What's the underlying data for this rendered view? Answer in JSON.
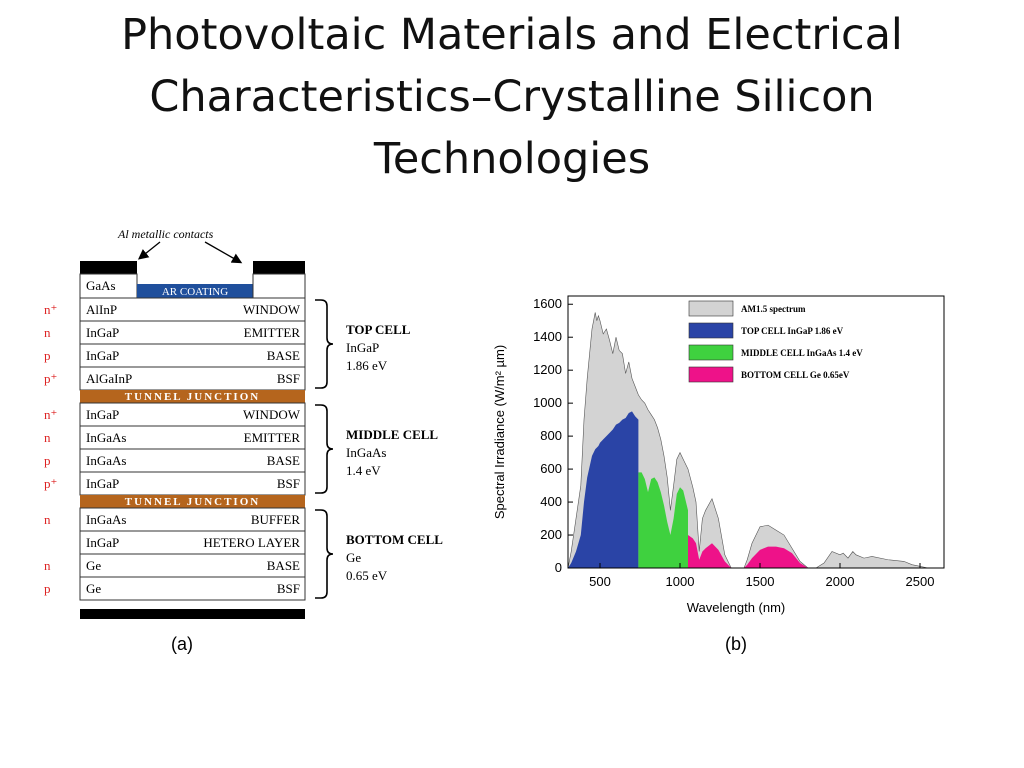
{
  "title_lines": [
    "Photovoltaic Materials and Electrical",
    "Characteristics–Crystalline Silicon",
    "Technologies"
  ],
  "stack": {
    "contacts_label": "Al metallic contacts",
    "cap_label": "GaAs",
    "ar_label": "AR COATING",
    "junction_label": "TUNNEL JUNCTION",
    "caption": "(a)",
    "colors": {
      "junction": "#b5651d",
      "ar": "#1f4f9c",
      "contact": "#000000"
    },
    "top_layers": [
      {
        "doping": "n⁺",
        "material": "AlInP",
        "role": "WINDOW"
      },
      {
        "doping": "n",
        "material": "InGaP",
        "role": "EMITTER"
      },
      {
        "doping": "p",
        "material": "InGaP",
        "role": "BASE"
      },
      {
        "doping": "p⁺",
        "material": "AlGaInP",
        "role": "BSF"
      }
    ],
    "middle_layers": [
      {
        "doping": "n⁺",
        "material": "InGaP",
        "role": "WINDOW"
      },
      {
        "doping": "n",
        "material": "InGaAs",
        "role": "EMITTER"
      },
      {
        "doping": "p",
        "material": "InGaAs",
        "role": "BASE"
      },
      {
        "doping": "p⁺",
        "material": "InGaP",
        "role": "BSF"
      }
    ],
    "bottom_layers": [
      {
        "doping": "n",
        "material": "InGaAs",
        "role": "BUFFER"
      },
      {
        "doping": "",
        "material": "InGaP",
        "role": "HETERO LAYER"
      },
      {
        "doping": "n",
        "material": "Ge",
        "role": "BASE"
      },
      {
        "doping": "p",
        "material": "Ge",
        "role": "BSF"
      }
    ],
    "cells": [
      {
        "name": "TOP CELL",
        "material": "InGaP",
        "energy": "1.86 eV"
      },
      {
        "name": "MIDDLE CELL",
        "material": "InGaAs",
        "energy": "1.4 eV"
      },
      {
        "name": "BOTTOM CELL",
        "material": "Ge",
        "energy": "0.65 eV"
      }
    ]
  },
  "chart_data": {
    "type": "area",
    "caption": "(b)",
    "xlabel": "Wavelength (nm)",
    "ylabel": "Spectral Irradiance (W/m² µm)",
    "xlim": [
      300,
      2650
    ],
    "ylim": [
      0,
      1650
    ],
    "xticks": [
      500,
      1000,
      1500,
      2000,
      2500
    ],
    "yticks": [
      0,
      200,
      400,
      600,
      800,
      1000,
      1200,
      1400,
      1600
    ],
    "legend": [
      {
        "label": "AM1.5 spectrum",
        "color": "#d3d3d3"
      },
      {
        "label": "TOP CELL InGaP 1.86 eV",
        "color": "#2a44a6"
      },
      {
        "label": "MIDDLE CELL InGaAs 1.4 eV",
        "color": "#3fd13f"
      },
      {
        "label": "BOTTOM CELL Ge 0.65eV",
        "color": "#ee1289"
      }
    ],
    "series": [
      {
        "name": "AM1.5 spectrum",
        "color": "#d3d3d3",
        "x": [
          300,
          320,
          350,
          380,
          400,
          420,
          450,
          470,
          480,
          490,
          500,
          520,
          540,
          560,
          580,
          600,
          620,
          640,
          660,
          680,
          700,
          720,
          740,
          760,
          780,
          800,
          820,
          840,
          860,
          880,
          900,
          920,
          940,
          960,
          980,
          1000,
          1020,
          1050,
          1080,
          1100,
          1120,
          1140,
          1160,
          1200,
          1240,
          1280,
          1320,
          1350,
          1380,
          1400,
          1420,
          1450,
          1500,
          1550,
          1600,
          1650,
          1700,
          1750,
          1800,
          1850,
          1900,
          1950,
          2000,
          2020,
          2050,
          2080,
          2100,
          2150,
          2200,
          2300,
          2400,
          2450,
          2500,
          2550
        ],
        "y": [
          0,
          100,
          300,
          500,
          900,
          1150,
          1450,
          1550,
          1500,
          1530,
          1500,
          1420,
          1450,
          1380,
          1300,
          1400,
          1320,
          1300,
          1180,
          1250,
          1150,
          1100,
          1050,
          1020,
          1000,
          960,
          930,
          900,
          850,
          780,
          680,
          550,
          350,
          500,
          660,
          700,
          660,
          600,
          490,
          400,
          100,
          300,
          350,
          420,
          300,
          80,
          0,
          0,
          0,
          0,
          50,
          150,
          250,
          260,
          230,
          200,
          120,
          40,
          0,
          0,
          30,
          100,
          80,
          90,
          60,
          100,
          80,
          60,
          70,
          50,
          40,
          20,
          10,
          0
        ]
      },
      {
        "name": "TOP CELL InGaP 1.86 eV",
        "color": "#2a44a6",
        "x": [
          300,
          320,
          350,
          380,
          400,
          420,
          450,
          470,
          480,
          490,
          500,
          520,
          540,
          560,
          580,
          600,
          620,
          640,
          660,
          680,
          700,
          720,
          740
        ],
        "y": [
          0,
          30,
          100,
          200,
          400,
          550,
          680,
          720,
          730,
          740,
          760,
          780,
          800,
          820,
          840,
          870,
          880,
          900,
          910,
          940,
          950,
          920,
          900
        ]
      },
      {
        "name": "MIDDLE CELL InGaAs 1.4 eV",
        "color": "#3fd13f",
        "x": [
          740,
          760,
          780,
          800,
          820,
          840,
          860,
          880,
          900,
          920,
          940,
          960,
          980,
          1000,
          1020,
          1050
        ],
        "y": [
          580,
          580,
          540,
          460,
          540,
          550,
          520,
          460,
          380,
          280,
          200,
          300,
          450,
          490,
          470,
          350
        ]
      },
      {
        "name": "BOTTOM CELL Ge 0.65eV",
        "color": "#ee1289",
        "x": [
          1050,
          1080,
          1100,
          1120,
          1140,
          1160,
          1200,
          1240,
          1280,
          1320,
          1350,
          1380,
          1400,
          1420,
          1450,
          1500,
          1550,
          1600,
          1650,
          1700,
          1750,
          1800
        ],
        "y": [
          200,
          180,
          150,
          50,
          100,
          120,
          150,
          110,
          40,
          0,
          0,
          0,
          0,
          20,
          60,
          110,
          130,
          130,
          120,
          90,
          30,
          0
        ]
      }
    ]
  }
}
